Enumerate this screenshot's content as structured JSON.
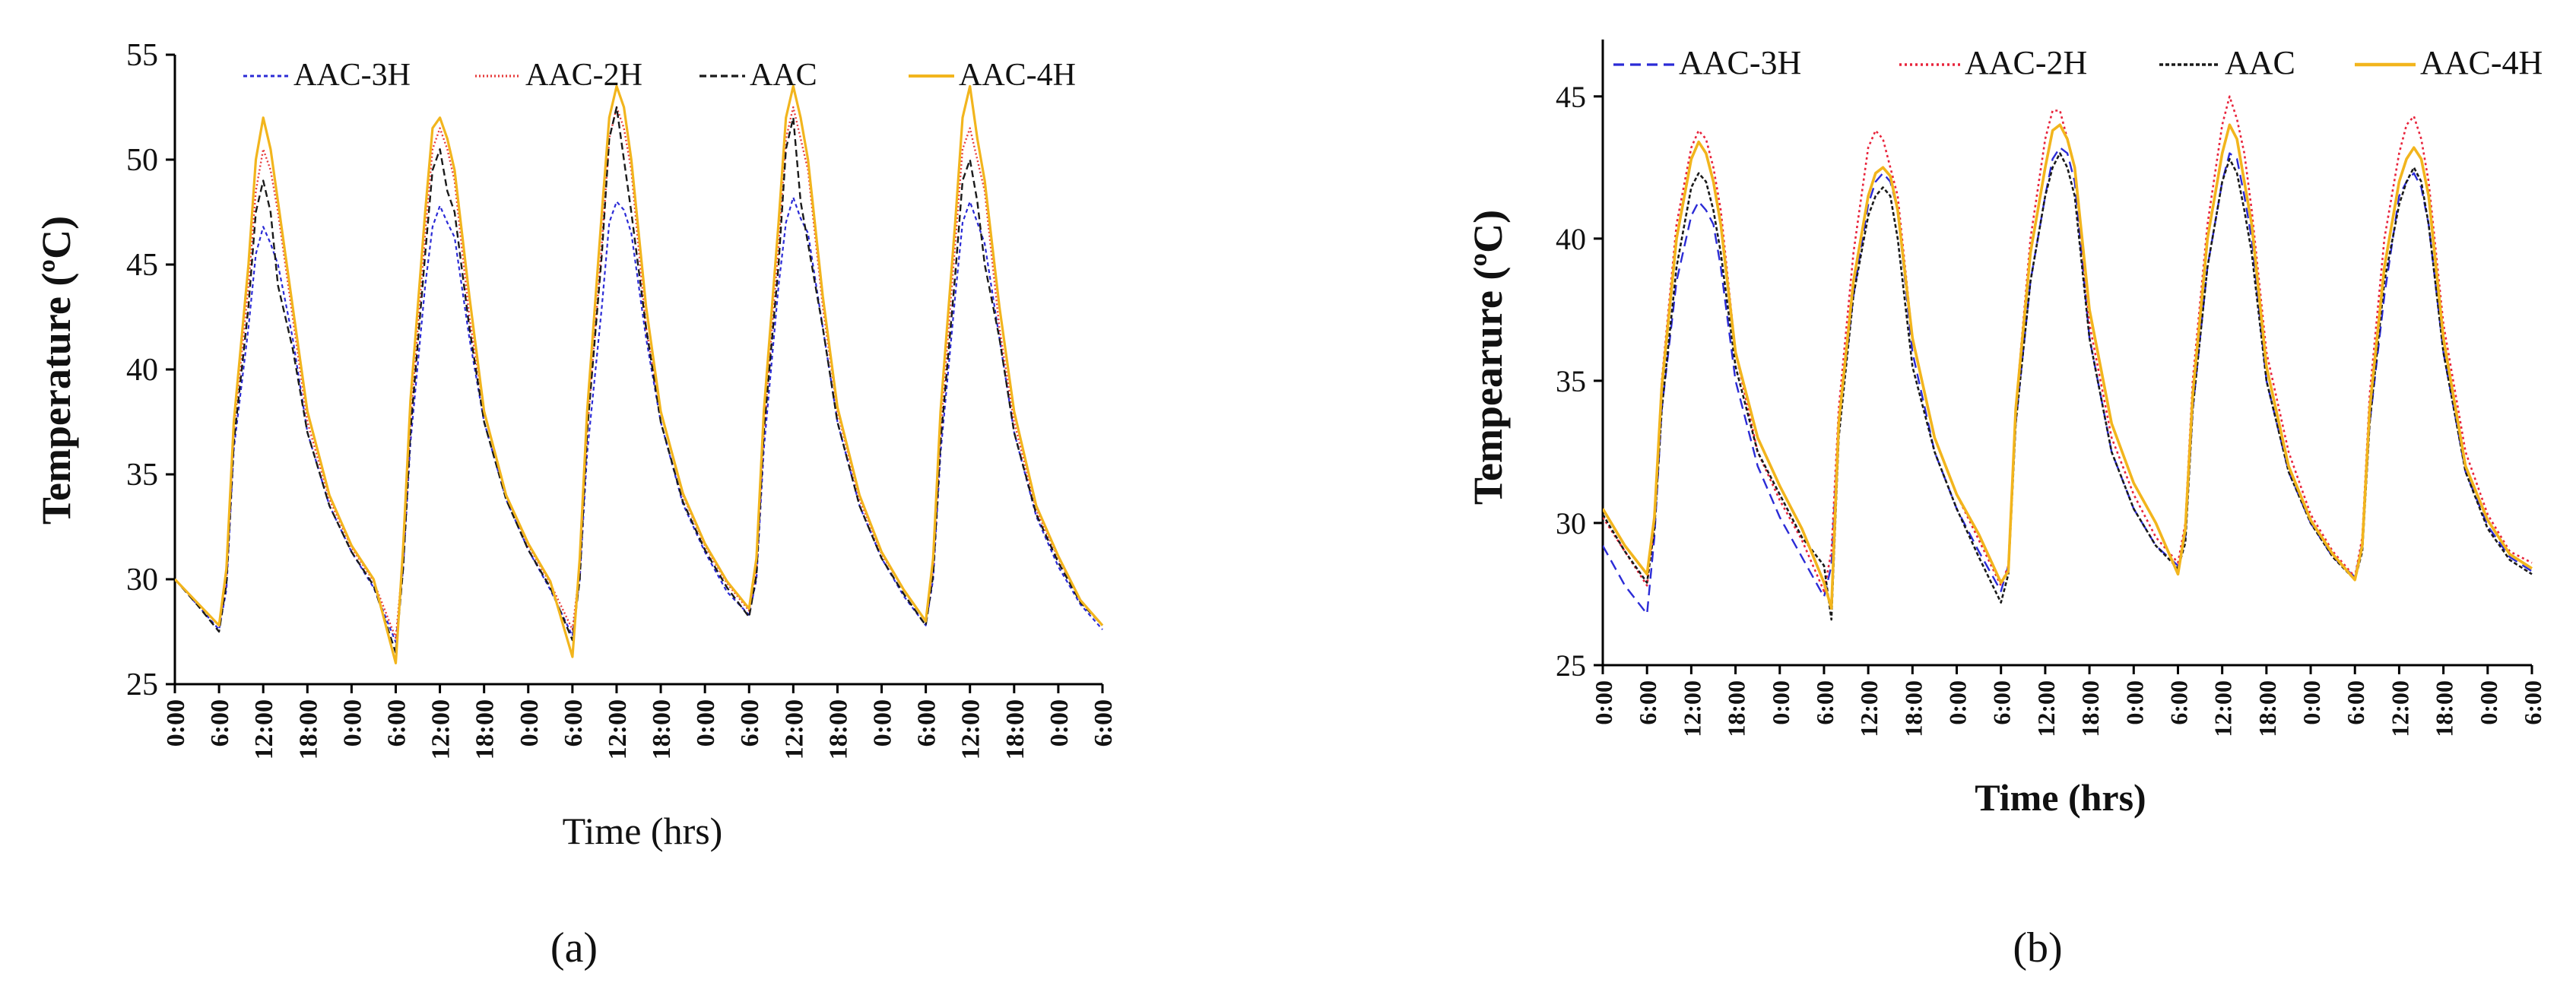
{
  "figure": {
    "panel_a_label": "(a)",
    "panel_b_label": "(b)"
  },
  "chart_data": [
    {
      "type": "line",
      "panel": "a",
      "title": "",
      "xlabel": "Time (hrs)",
      "ylabel": "Temperature (ºC)",
      "ylim": [
        25,
        55
      ],
      "yticks": [
        25,
        30,
        35,
        40,
        45,
        50,
        55
      ],
      "x_tick_labels": [
        "0:00",
        "6:00",
        "12:00",
        "18:00",
        "0:00",
        "6:00",
        "12:00",
        "18:00",
        "0:00",
        "6:00",
        "12:00",
        "18:00",
        "0:00",
        "6:00",
        "12:00",
        "18:00",
        "0:00",
        "6:00",
        "12:00",
        "18:00",
        "0:00",
        "6:00"
      ],
      "x": [
        0,
        3,
        6,
        7,
        8,
        10,
        11,
        12,
        13,
        14,
        16,
        18,
        21,
        24,
        27,
        30,
        31,
        32,
        34,
        35,
        36,
        37,
        38,
        40,
        42,
        45,
        48,
        51,
        54,
        55,
        56,
        58,
        59,
        60,
        61,
        62,
        64,
        66,
        69,
        72,
        75,
        78,
        79,
        80,
        82,
        83,
        84,
        85,
        86,
        88,
        90,
        93,
        96,
        99,
        102,
        103,
        104,
        106,
        107,
        108,
        109,
        110,
        112,
        114,
        117,
        120,
        123,
        126
      ],
      "series": [
        {
          "name": "AAC-3H",
          "color": "#2b2bd6",
          "dash": "5,4",
          "width": 2.2,
          "values": [
            30.0,
            28.8,
            27.6,
            29.5,
            36.2,
            42.0,
            45.5,
            46.8,
            46.0,
            45.0,
            41.5,
            37.0,
            33.5,
            31.3,
            29.6,
            27.0,
            30.5,
            36.5,
            44.0,
            46.8,
            47.8,
            47.0,
            46.3,
            41.5,
            37.5,
            33.8,
            31.4,
            29.5,
            27.3,
            30.0,
            36.0,
            43.0,
            47.0,
            48.0,
            47.6,
            46.5,
            41.5,
            37.5,
            33.6,
            31.3,
            29.4,
            28.3,
            30.0,
            36.2,
            44.0,
            47.0,
            48.2,
            47.2,
            46.5,
            42.0,
            37.5,
            33.5,
            31.0,
            29.2,
            27.8,
            30.0,
            36.0,
            43.5,
            47.0,
            48.0,
            47.0,
            46.0,
            41.5,
            37.0,
            33.0,
            30.6,
            28.8,
            27.6
          ]
        },
        {
          "name": "AAC-2H",
          "color": "#e63b3b",
          "dash": "2,3",
          "width": 2.4,
          "values": [
            30.0,
            28.9,
            27.8,
            30.0,
            37.0,
            44.0,
            48.5,
            50.5,
            49.5,
            47.5,
            42.5,
            37.5,
            33.8,
            31.5,
            29.9,
            27.2,
            31.0,
            37.5,
            46.5,
            50.5,
            51.5,
            50.5,
            49.0,
            42.5,
            38.0,
            34.0,
            31.6,
            29.8,
            27.6,
            30.5,
            37.0,
            46.0,
            51.0,
            52.5,
            51.5,
            49.5,
            42.0,
            38.0,
            34.0,
            31.6,
            29.8,
            28.5,
            30.5,
            37.0,
            46.0,
            51.0,
            52.5,
            51.0,
            49.5,
            43.0,
            38.0,
            33.8,
            31.2,
            29.5,
            28.0,
            30.5,
            37.0,
            46.0,
            50.5,
            51.5,
            50.0,
            48.5,
            42.0,
            37.5,
            33.3,
            31.0,
            29.0,
            27.8
          ]
        },
        {
          "name": "AAC",
          "color": "#1a1a1a",
          "dash": "9,5",
          "width": 2.4,
          "values": [
            30.0,
            28.8,
            27.5,
            29.8,
            36.5,
            43.0,
            47.5,
            49.0,
            47.5,
            44.0,
            41.0,
            37.0,
            33.5,
            31.3,
            29.7,
            26.5,
            30.5,
            37.0,
            45.5,
            49.5,
            50.5,
            48.5,
            47.5,
            42.0,
            37.5,
            33.8,
            31.4,
            29.6,
            27.1,
            30.0,
            37.0,
            45.5,
            51.0,
            52.5,
            50.0,
            47.5,
            42.0,
            37.5,
            33.7,
            31.4,
            29.6,
            28.2,
            30.2,
            37.0,
            45.0,
            50.5,
            52.0,
            48.0,
            46.0,
            42.0,
            37.5,
            33.5,
            31.0,
            29.3,
            27.8,
            30.2,
            36.5,
            44.5,
            49.0,
            50.0,
            48.0,
            45.0,
            41.5,
            37.0,
            33.1,
            30.8,
            28.9,
            27.8
          ]
        },
        {
          "name": "AAC-4H",
          "color": "#f2b51d",
          "dash": "",
          "width": 3.2,
          "values": [
            30.0,
            28.9,
            27.8,
            30.5,
            37.5,
            45.0,
            50.0,
            52.0,
            50.5,
            48.0,
            43.0,
            38.0,
            34.0,
            31.6,
            30.0,
            26.0,
            31.5,
            38.5,
            47.5,
            51.5,
            52.0,
            51.0,
            49.5,
            43.5,
            38.0,
            34.0,
            31.7,
            29.9,
            26.3,
            31.0,
            38.0,
            47.5,
            52.0,
            53.5,
            52.5,
            50.0,
            43.0,
            38.0,
            34.1,
            31.7,
            29.9,
            28.6,
            31.0,
            38.0,
            47.0,
            52.0,
            53.5,
            52.0,
            50.0,
            43.5,
            38.2,
            34.0,
            31.3,
            29.5,
            28.0,
            31.0,
            38.0,
            47.0,
            52.0,
            53.5,
            51.0,
            49.0,
            43.0,
            38.0,
            33.5,
            31.1,
            29.0,
            27.8
          ]
        }
      ],
      "legend": {
        "position": "top",
        "entries": [
          "AAC-3H",
          "AAC-2H",
          "AAC",
          "AAC-4H"
        ]
      }
    },
    {
      "type": "line",
      "panel": "b",
      "title": "",
      "xlabel": "Time (hrs)",
      "ylabel": "Tempearure (ºC)",
      "ylim": [
        25,
        47
      ],
      "yticks": [
        25,
        30,
        35,
        40,
        45
      ],
      "x_tick_labels": [
        "0:00",
        "6:00",
        "12:00",
        "18:00",
        "0:00",
        "6:00",
        "12:00",
        "18:00",
        "0:00",
        "6:00",
        "12:00",
        "18:00",
        "0:00",
        "6:00",
        "12:00",
        "18:00",
        "0:00",
        "6:00",
        "12:00",
        "18:00",
        "0:00",
        "6:00"
      ],
      "x": [
        0,
        3,
        6,
        7,
        8,
        10,
        12,
        13,
        14,
        15,
        16,
        18,
        21,
        24,
        27,
        30,
        31,
        32,
        34,
        36,
        37,
        38,
        39,
        40,
        42,
        45,
        48,
        51,
        54,
        55,
        56,
        58,
        60,
        61,
        62,
        63,
        64,
        66,
        69,
        72,
        75,
        78,
        79,
        80,
        82,
        84,
        85,
        86,
        87,
        88,
        90,
        93,
        96,
        99,
        102,
        103,
        104,
        106,
        108,
        109,
        110,
        111,
        112,
        114,
        117,
        120,
        123,
        126
      ],
      "series": [
        {
          "name": "AAC-3H",
          "color": "#2b2bd6",
          "dash": "14,8",
          "width": 2.4,
          "values": [
            29.2,
            27.8,
            26.8,
            29.5,
            34.0,
            38.5,
            40.8,
            41.3,
            41.0,
            40.5,
            39.0,
            35.0,
            32.0,
            30.2,
            28.8,
            27.4,
            28.5,
            33.5,
            38.0,
            41.2,
            42.0,
            42.3,
            42.0,
            41.0,
            36.0,
            32.5,
            30.5,
            29.0,
            27.6,
            28.5,
            33.5,
            38.5,
            41.5,
            42.8,
            43.2,
            43.0,
            42.0,
            36.5,
            32.5,
            30.5,
            29.2,
            28.5,
            29.5,
            34.0,
            39.0,
            42.0,
            43.0,
            42.8,
            41.5,
            40.0,
            35.0,
            31.8,
            30.0,
            28.8,
            28.1,
            29.3,
            33.5,
            38.0,
            41.5,
            42.0,
            42.3,
            41.8,
            40.5,
            36.0,
            31.8,
            29.9,
            28.8,
            28.3
          ]
        },
        {
          "name": "AAC-2H",
          "color": "#e8243c",
          "dash": "3,4",
          "width": 2.6,
          "values": [
            30.2,
            29.0,
            27.8,
            30.0,
            35.0,
            40.5,
            43.2,
            43.8,
            43.5,
            42.5,
            41.0,
            36.0,
            32.5,
            30.8,
            29.4,
            27.6,
            29.0,
            34.0,
            39.5,
            43.2,
            43.8,
            43.5,
            42.5,
            41.5,
            36.5,
            33.0,
            31.0,
            29.4,
            27.8,
            28.5,
            34.0,
            40.0,
            43.5,
            44.5,
            44.5,
            43.5,
            42.5,
            37.0,
            33.0,
            31.0,
            29.5,
            28.6,
            30.0,
            35.0,
            40.5,
            44.0,
            45.0,
            44.2,
            43.0,
            41.0,
            36.0,
            32.5,
            30.3,
            29.0,
            28.1,
            29.5,
            34.5,
            40.0,
            43.0,
            44.0,
            44.3,
            43.5,
            42.0,
            37.0,
            32.5,
            30.3,
            29.0,
            28.6
          ]
        },
        {
          "name": "AAC",
          "color": "#1a1a1a",
          "dash": "5,3",
          "width": 2.6,
          "values": [
            30.3,
            29.0,
            27.9,
            29.8,
            34.0,
            39.0,
            41.8,
            42.3,
            42.0,
            41.0,
            39.5,
            35.5,
            32.5,
            31.0,
            29.5,
            28.5,
            26.6,
            33.0,
            38.0,
            40.8,
            41.5,
            41.8,
            41.5,
            40.0,
            35.5,
            32.5,
            30.5,
            28.8,
            27.2,
            28.2,
            33.5,
            38.5,
            41.5,
            42.5,
            43.0,
            42.5,
            41.5,
            36.5,
            32.5,
            30.5,
            29.2,
            28.4,
            29.3,
            34.0,
            39.0,
            42.0,
            42.8,
            42.3,
            41.0,
            39.5,
            35.0,
            31.8,
            30.0,
            28.8,
            28.0,
            29.0,
            33.5,
            38.5,
            41.2,
            42.0,
            42.5,
            42.0,
            40.5,
            36.0,
            31.8,
            29.8,
            28.7,
            28.2
          ]
        },
        {
          "name": "AAC-4H",
          "color": "#f2b51d",
          "dash": "",
          "width": 3.6,
          "values": [
            30.5,
            29.2,
            28.2,
            30.2,
            34.8,
            40.0,
            42.8,
            43.4,
            43.0,
            42.0,
            40.5,
            36.0,
            33.0,
            31.3,
            29.8,
            27.9,
            27.0,
            33.5,
            38.5,
            41.5,
            42.3,
            42.5,
            42.2,
            41.0,
            36.5,
            33.0,
            31.0,
            29.6,
            27.9,
            28.3,
            34.0,
            39.5,
            42.5,
            43.8,
            44.0,
            43.5,
            42.5,
            37.5,
            33.5,
            31.4,
            30.0,
            28.2,
            29.8,
            34.5,
            40.0,
            43.0,
            44.0,
            43.5,
            42.0,
            40.5,
            35.5,
            32.0,
            30.1,
            28.9,
            28.0,
            29.2,
            34.0,
            39.0,
            42.0,
            42.8,
            43.2,
            42.8,
            41.5,
            36.5,
            32.0,
            30.1,
            28.9,
            28.4
          ]
        }
      ],
      "legend": {
        "position": "top",
        "entries": [
          "AAC-3H",
          "AAC-2H",
          "AAC",
          "AAC-4H"
        ]
      }
    }
  ]
}
